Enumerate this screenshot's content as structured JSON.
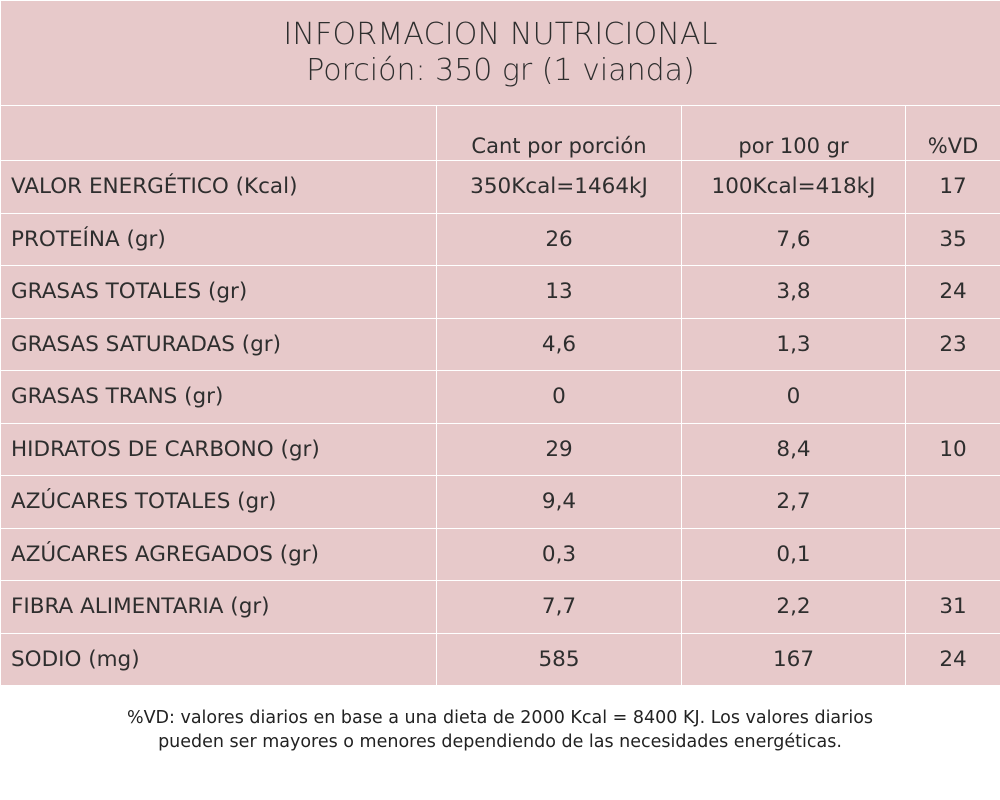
{
  "title": "INFORMACION NUTRICIONAL",
  "subtitle": "Porción: 350 gr (1 vianda)",
  "columns": {
    "per_portion": "Cant por porción",
    "per_100g": "por 100 gr",
    "vd": "%VD"
  },
  "rows": [
    {
      "name": "VALOR ENERGÉTICO  (Kcal)",
      "per_portion": "350Kcal=1464kJ",
      "per_100g": "100Kcal=418kJ",
      "vd": "17"
    },
    {
      "name": "PROTEÍNA (gr)",
      "per_portion": "26",
      "per_100g": "7,6",
      "vd": "35"
    },
    {
      "name": "GRASAS TOTALES (gr)",
      "per_portion": "13",
      "per_100g": "3,8",
      "vd": "24"
    },
    {
      "name": "GRASAS SATURADAS (gr)",
      "per_portion": "4,6",
      "per_100g": "1,3",
      "vd": "23"
    },
    {
      "name": "GRASAS TRANS (gr)",
      "per_portion": "0",
      "per_100g": "0",
      "vd": ""
    },
    {
      "name": "HIDRATOS DE CARBONO (gr)",
      "per_portion": "29",
      "per_100g": "8,4",
      "vd": "10"
    },
    {
      "name": "AZÚCARES TOTALES (gr)",
      "per_portion": "9,4",
      "per_100g": "2,7",
      "vd": ""
    },
    {
      "name": "AZÚCARES AGREGADOS (gr)",
      "per_portion": "0,3",
      "per_100g": "0,1",
      "vd": ""
    },
    {
      "name": "FIBRA ALIMENTARIA (gr)",
      "per_portion": "7,7",
      "per_100g": "2,2",
      "vd": "31"
    },
    {
      "name": "SODIO (mg)",
      "per_portion": "585",
      "per_100g": "167",
      "vd": "24"
    }
  ],
  "footnote": "%VD:  valores diarios en base a una dieta de 2000 Kcal = 8400 KJ. Los valores diarios\npueden ser mayores o menores dependiendo de las necesidades energéticas.",
  "colors": {
    "cell_background": "#e7c9ca",
    "grid_lines": "#ffffff",
    "text": "#2e2e2e"
  }
}
